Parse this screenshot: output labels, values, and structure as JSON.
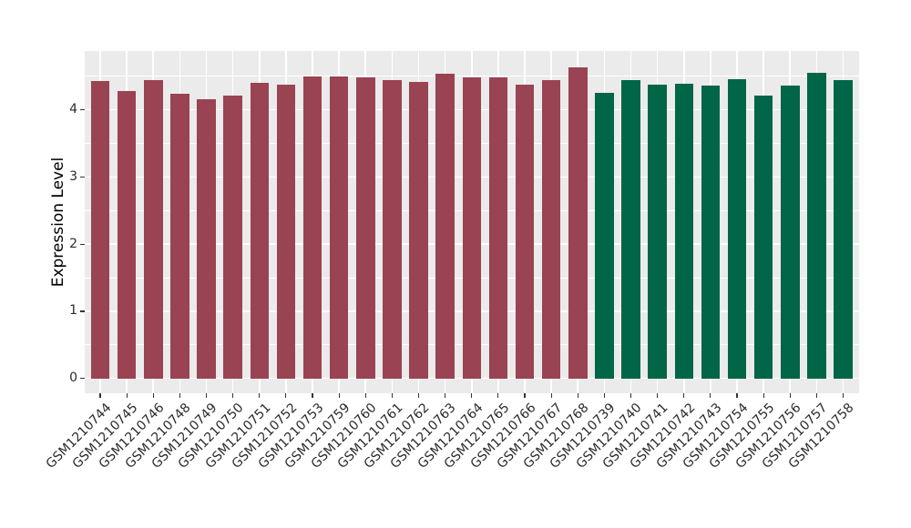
{
  "chart_data": {
    "type": "bar",
    "title": "",
    "xlabel": "",
    "ylabel": "Expression Level",
    "ylim": [
      0,
      4.88
    ],
    "yticks": [
      0,
      1,
      2,
      3,
      4
    ],
    "yticks_minor": [
      0.5,
      1.5,
      2.5,
      3.5,
      4.5
    ],
    "grid": true,
    "legend_position": "none",
    "categories": [
      "GSM1210744",
      "GSM1210745",
      "GSM1210746",
      "GSM1210748",
      "GSM1210749",
      "GSM1210750",
      "GSM1210751",
      "GSM1210752",
      "GSM1210753",
      "GSM1210759",
      "GSM1210760",
      "GSM1210761",
      "GSM1210762",
      "GSM1210763",
      "GSM1210764",
      "GSM1210765",
      "GSM1210766",
      "GSM1210767",
      "GSM1210768",
      "GSM1210739",
      "GSM1210740",
      "GSM1210741",
      "GSM1210742",
      "GSM1210743",
      "GSM1210754",
      "GSM1210755",
      "GSM1210756",
      "GSM1210757",
      "GSM1210758"
    ],
    "values": [
      4.43,
      4.28,
      4.45,
      4.24,
      4.16,
      4.21,
      4.4,
      4.37,
      4.5,
      4.5,
      4.48,
      4.45,
      4.42,
      4.54,
      4.49,
      4.49,
      4.37,
      4.44,
      4.63,
      4.26,
      4.45,
      4.37,
      4.39,
      4.36,
      4.46,
      4.21,
      4.36,
      4.55,
      4.45
    ],
    "groups": [
      "maroon",
      "maroon",
      "maroon",
      "maroon",
      "maroon",
      "maroon",
      "maroon",
      "maroon",
      "maroon",
      "maroon",
      "maroon",
      "maroon",
      "maroon",
      "maroon",
      "maroon",
      "maroon",
      "maroon",
      "maroon",
      "maroon",
      "green",
      "green",
      "green",
      "green",
      "green",
      "green",
      "green",
      "green",
      "green",
      "green"
    ],
    "palette": {
      "maroon": "#9A4352",
      "green": "#006647"
    },
    "colors": {
      "panel_background": "#EBEBEB",
      "gridline": "#FFFFFF",
      "tick_text": "#2B2B2B",
      "axis_title_text": "#000000",
      "figure_background": "#FFFFFF"
    }
  }
}
